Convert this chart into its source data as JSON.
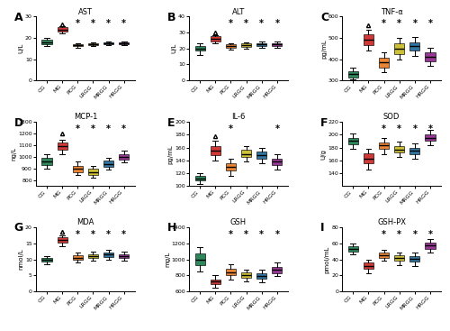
{
  "groups": [
    "CG",
    "MG",
    "PCG",
    "LRGG",
    "MRGG",
    "HRGG"
  ],
  "colors": [
    "#1a7a4a",
    "#cc2222",
    "#e87820",
    "#c8b820",
    "#1a6696",
    "#8b2288"
  ],
  "panels": [
    {
      "label": "A",
      "title": "AST",
      "ylabel": "U/L",
      "ylim": [
        0,
        30
      ],
      "yticks": [
        0,
        10,
        20,
        30
      ],
      "data": {
        "medians": [
          18.0,
          24.0,
          16.5,
          17.0,
          17.5,
          17.5
        ],
        "q1": [
          17.0,
          23.0,
          16.0,
          16.5,
          17.0,
          17.0
        ],
        "q3": [
          19.0,
          25.0,
          17.0,
          17.5,
          18.0,
          18.0
        ],
        "whislo": [
          16.0,
          22.0,
          15.5,
          16.0,
          16.5,
          16.5
        ],
        "whishi": [
          20.0,
          25.5,
          17.5,
          18.0,
          18.5,
          18.5
        ],
        "fliers_high": [
          null,
          26.5,
          null,
          null,
          null,
          null
        ],
        "fliers_low": [
          null,
          null,
          null,
          null,
          null,
          null
        ],
        "stars": [
          false,
          false,
          true,
          true,
          true,
          true
        ]
      }
    },
    {
      "label": "B",
      "title": "ALT",
      "ylabel": "U/L",
      "ylim": [
        0,
        40
      ],
      "yticks": [
        0,
        10,
        20,
        30,
        40
      ],
      "data": {
        "medians": [
          20.0,
          26.0,
          21.5,
          22.0,
          22.5,
          22.5
        ],
        "q1": [
          18.5,
          24.5,
          20.5,
          21.0,
          21.5,
          21.5
        ],
        "q3": [
          21.5,
          27.5,
          22.5,
          23.0,
          23.5,
          23.5
        ],
        "whislo": [
          16.0,
          23.0,
          19.5,
          20.0,
          20.5,
          20.5
        ],
        "whishi": [
          23.0,
          28.5,
          23.5,
          24.0,
          24.5,
          24.5
        ],
        "fliers_high": [
          null,
          30.0,
          null,
          null,
          null,
          null
        ],
        "fliers_low": [
          null,
          null,
          null,
          null,
          null,
          null
        ],
        "stars": [
          false,
          false,
          true,
          true,
          true,
          true
        ]
      }
    },
    {
      "label": "C",
      "title": "TNF-α",
      "ylabel": "pg/mL",
      "ylim": [
        300,
        600
      ],
      "yticks": [
        300,
        400,
        500,
        600
      ],
      "data": {
        "medians": [
          330,
          490,
          385,
          450,
          460,
          410
        ],
        "q1": [
          315,
          465,
          360,
          425,
          440,
          390
        ],
        "q3": [
          345,
          515,
          405,
          475,
          480,
          430
        ],
        "whislo": [
          305,
          440,
          340,
          400,
          415,
          370
        ],
        "whishi": [
          360,
          540,
          430,
          500,
          505,
          455
        ],
        "fliers_high": [
          null,
          560,
          null,
          null,
          null,
          null
        ],
        "fliers_low": [
          null,
          null,
          null,
          null,
          null,
          null
        ],
        "stars": [
          false,
          false,
          true,
          true,
          true,
          true
        ]
      }
    },
    {
      "label": "D",
      "title": "MCP-1",
      "ylabel": "ng/L",
      "ylim": [
        750,
        1300
      ],
      "yticks": [
        800,
        900,
        1000,
        1100,
        1200,
        1300
      ],
      "data": {
        "medians": [
          960,
          1090,
          900,
          870,
          940,
          1000
        ],
        "q1": [
          930,
          1060,
          870,
          845,
          915,
          975
        ],
        "q3": [
          990,
          1120,
          925,
          895,
          965,
          1025
        ],
        "whislo": [
          895,
          1020,
          840,
          820,
          890,
          950
        ],
        "whishi": [
          1020,
          1150,
          960,
          920,
          990,
          1055
        ],
        "fliers_high": [
          null,
          1200,
          null,
          null,
          null,
          null
        ],
        "fliers_low": [
          null,
          null,
          null,
          null,
          null,
          null
        ],
        "stars": [
          false,
          false,
          true,
          true,
          true,
          true
        ]
      }
    },
    {
      "label": "E",
      "title": "IL-6",
      "ylabel": "pg/mL",
      "ylim": [
        100,
        200
      ],
      "yticks": [
        100,
        120,
        140,
        160,
        180,
        200
      ],
      "data": {
        "medians": [
          112,
          155,
          130,
          150,
          148,
          138
        ],
        "q1": [
          108,
          148,
          124,
          145,
          143,
          133
        ],
        "q3": [
          116,
          162,
          136,
          156,
          154,
          143
        ],
        "whislo": [
          103,
          140,
          116,
          138,
          136,
          126
        ],
        "whishi": [
          120,
          170,
          143,
          162,
          160,
          150
        ],
        "fliers_high": [
          null,
          178,
          null,
          null,
          null,
          null
        ],
        "fliers_low": [
          null,
          null,
          null,
          null,
          null,
          null
        ],
        "stars": [
          false,
          false,
          true,
          false,
          false,
          true
        ]
      }
    },
    {
      "label": "F",
      "title": "SOD",
      "ylabel": "U/g",
      "ylim": [
        120,
        220
      ],
      "yticks": [
        140,
        160,
        180,
        200,
        220
      ],
      "data": {
        "medians": [
          190,
          163,
          183,
          177,
          175,
          195
        ],
        "q1": [
          185,
          155,
          178,
          172,
          170,
          190
        ],
        "q3": [
          195,
          171,
          188,
          182,
          180,
          200
        ],
        "whislo": [
          178,
          145,
          170,
          165,
          163,
          183
        ],
        "whishi": [
          202,
          178,
          195,
          189,
          187,
          207
        ],
        "fliers_high": [
          null,
          null,
          null,
          null,
          null,
          null
        ],
        "fliers_low": [
          null,
          null,
          null,
          null,
          null,
          null
        ],
        "stars": [
          false,
          false,
          true,
          true,
          true,
          true
        ]
      }
    },
    {
      "label": "G",
      "title": "MDA",
      "ylabel": "nmol/L",
      "ylim": [
        0,
        20
      ],
      "yticks": [
        0,
        5,
        10,
        15,
        20
      ],
      "data": {
        "medians": [
          9.8,
          16.0,
          10.5,
          11.0,
          11.5,
          11.0
        ],
        "q1": [
          9.2,
          15.2,
          9.8,
          10.3,
          10.8,
          10.3
        ],
        "q3": [
          10.4,
          16.8,
          11.2,
          11.7,
          12.2,
          11.7
        ],
        "whislo": [
          8.5,
          14.0,
          9.0,
          9.5,
          10.0,
          9.5
        ],
        "whishi": [
          11.0,
          17.5,
          12.0,
          12.5,
          13.0,
          12.5
        ],
        "fliers_high": [
          null,
          18.5,
          null,
          null,
          null,
          null
        ],
        "fliers_low": [
          null,
          null,
          null,
          null,
          null,
          null
        ],
        "stars": [
          false,
          false,
          true,
          true,
          true,
          true
        ]
      }
    },
    {
      "label": "H",
      "title": "GSH",
      "ylabel": "mg/L",
      "ylim": [
        600,
        1400
      ],
      "yticks": [
        600,
        800,
        1000,
        1200,
        1400
      ],
      "data": {
        "medians": [
          1000,
          720,
          840,
          800,
          790,
          870
        ],
        "q1": [
          930,
          690,
          800,
          765,
          755,
          830
        ],
        "q3": [
          1070,
          750,
          880,
          835,
          825,
          910
        ],
        "whislo": [
          850,
          650,
          750,
          725,
          715,
          790
        ],
        "whishi": [
          1150,
          800,
          940,
          875,
          865,
          960
        ],
        "fliers_high": [
          null,
          null,
          null,
          null,
          null,
          null
        ],
        "fliers_low": [
          null,
          null,
          null,
          null,
          null,
          null
        ],
        "stars": [
          false,
          false,
          true,
          true,
          true,
          true
        ]
      }
    },
    {
      "label": "I",
      "title": "GSH-PX",
      "ylabel": "pmol/mL",
      "ylim": [
        0,
        80
      ],
      "yticks": [
        0,
        20,
        40,
        60,
        80
      ],
      "data": {
        "medians": [
          53,
          32,
          45,
          42,
          41,
          57
        ],
        "q1": [
          50,
          28,
          42,
          38,
          37,
          53
        ],
        "q3": [
          56,
          36,
          48,
          45,
          44,
          61
        ],
        "whislo": [
          46,
          23,
          38,
          33,
          32,
          48
        ],
        "whishi": [
          60,
          40,
          52,
          49,
          48,
          65
        ],
        "fliers_high": [
          null,
          null,
          null,
          null,
          null,
          null
        ],
        "fliers_low": [
          null,
          null,
          null,
          null,
          null,
          null
        ],
        "stars": [
          false,
          false,
          true,
          true,
          true,
          true
        ]
      }
    }
  ]
}
